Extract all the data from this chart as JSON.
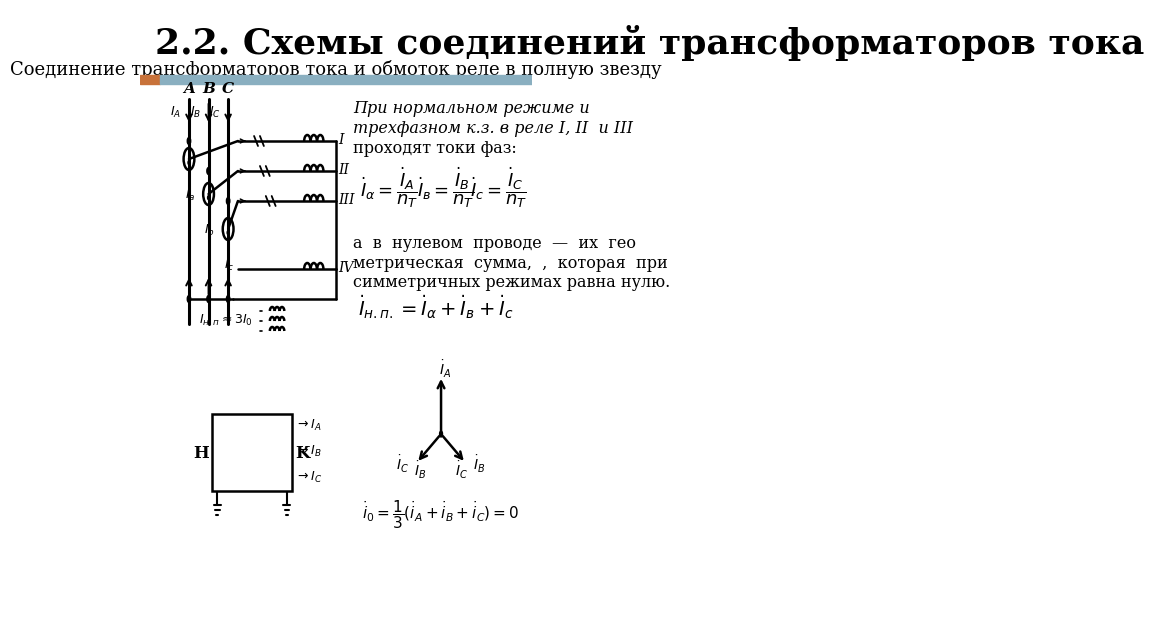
{
  "title": "2.2. Схемы соединений трансформаторов тока",
  "subtitle": "Соединение трансформаторов тока и обмоток реле в полную звезду",
  "title_fontsize": 26,
  "subtitle_fontsize": 13,
  "bg_color": "#ffffff",
  "bar_orange": "#C8723A",
  "bar_blue": "#8aafc0",
  "text_italic_1": "При нормальном режиме и",
  "text_italic_2": "трехфазном к.з. в реле I, II  и III",
  "text_normal_3": "проходят токи фаз:",
  "text_middle": "а  в  нулевом  проводе  —  их  гео\nметрическая  сумма,  ,  которая  при\nсимметричных режимах равна нулю."
}
